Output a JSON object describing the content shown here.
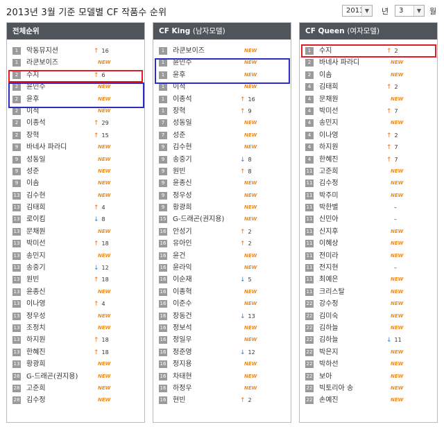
{
  "header": {
    "title": "2013년 3월 기준 모델별 CF 작품수 순위",
    "year_value": "2013",
    "year_label": "년",
    "month_value": "3",
    "month_label": "월"
  },
  "colors": {
    "panel_header": "#50555b",
    "new": "#f08a1c",
    "up": "#e8701a",
    "down": "#2a7fd1",
    "red_box": "#e01b24",
    "blue_box": "#2b2bc8"
  },
  "panels": [
    {
      "title": "전체순위",
      "subtitle": "",
      "rows": [
        {
          "rank": "1",
          "name": "악동뮤지션",
          "kind": "up",
          "value": "16"
        },
        {
          "rank": "1",
          "name": "라쿤보이즈",
          "kind": "new",
          "value": "NEW"
        },
        {
          "rank": "2",
          "name": "수지",
          "kind": "up",
          "value": "6"
        },
        {
          "rank": "2",
          "name": "윤민수",
          "kind": "new",
          "value": "NEW"
        },
        {
          "rank": "2",
          "name": "윤후",
          "kind": "new",
          "value": "NEW"
        },
        {
          "rank": "2",
          "name": "이적",
          "kind": "new",
          "value": "NEW"
        },
        {
          "rank": "2",
          "name": "이종석",
          "kind": "up",
          "value": "29"
        },
        {
          "rank": "2",
          "name": "장혁",
          "kind": "up",
          "value": "15"
        },
        {
          "rank": "9",
          "name": "바네사 파라디",
          "kind": "new",
          "value": "NEW"
        },
        {
          "rank": "9",
          "name": "성동일",
          "kind": "new",
          "value": "NEW"
        },
        {
          "rank": "9",
          "name": "성준",
          "kind": "new",
          "value": "NEW"
        },
        {
          "rank": "9",
          "name": "이솜",
          "kind": "new",
          "value": "NEW"
        },
        {
          "rank": "13",
          "name": "김수현",
          "kind": "new",
          "value": "NEW"
        },
        {
          "rank": "13",
          "name": "김태희",
          "kind": "up",
          "value": "4"
        },
        {
          "rank": "13",
          "name": "로이킴",
          "kind": "down",
          "value": "8"
        },
        {
          "rank": "13",
          "name": "문채원",
          "kind": "new",
          "value": "NEW"
        },
        {
          "rank": "13",
          "name": "박미선",
          "kind": "up",
          "value": "18"
        },
        {
          "rank": "13",
          "name": "송민지",
          "kind": "new",
          "value": "NEW"
        },
        {
          "rank": "13",
          "name": "송중기",
          "kind": "down",
          "value": "12"
        },
        {
          "rank": "13",
          "name": "원빈",
          "kind": "up",
          "value": "18"
        },
        {
          "rank": "13",
          "name": "윤종신",
          "kind": "new",
          "value": "NEW"
        },
        {
          "rank": "13",
          "name": "이나영",
          "kind": "up",
          "value": "4"
        },
        {
          "rank": "13",
          "name": "정우성",
          "kind": "new",
          "value": "NEW"
        },
        {
          "rank": "13",
          "name": "조정치",
          "kind": "new",
          "value": "NEW"
        },
        {
          "rank": "13",
          "name": "하지원",
          "kind": "up",
          "value": "18"
        },
        {
          "rank": "13",
          "name": "한혜진",
          "kind": "up",
          "value": "18"
        },
        {
          "rank": "13",
          "name": "황광희",
          "kind": "new",
          "value": "NEW"
        },
        {
          "rank": "28",
          "name": "G-드래곤(권지용)",
          "kind": "new",
          "value": "NEW"
        },
        {
          "rank": "28",
          "name": "고준희",
          "kind": "new",
          "value": "NEW"
        },
        {
          "rank": "28",
          "name": "김수정",
          "kind": "new",
          "value": "NEW"
        }
      ]
    },
    {
      "title": "CF King",
      "subtitle": "(남자모델)",
      "rows": [
        {
          "rank": "1",
          "name": "라쿤보이즈",
          "kind": "new",
          "value": "NEW"
        },
        {
          "rank": "1",
          "name": "윤민수",
          "kind": "new",
          "value": "NEW"
        },
        {
          "rank": "1",
          "name": "윤후",
          "kind": "new",
          "value": "NEW"
        },
        {
          "rank": "1",
          "name": "이적",
          "kind": "new",
          "value": "NEW"
        },
        {
          "rank": "1",
          "name": "이종석",
          "kind": "up",
          "value": "16"
        },
        {
          "rank": "1",
          "name": "장혁",
          "kind": "up",
          "value": "9"
        },
        {
          "rank": "7",
          "name": "성동일",
          "kind": "new",
          "value": "NEW"
        },
        {
          "rank": "7",
          "name": "성준",
          "kind": "new",
          "value": "NEW"
        },
        {
          "rank": "9",
          "name": "김수현",
          "kind": "new",
          "value": "NEW"
        },
        {
          "rank": "9",
          "name": "송중기",
          "kind": "down",
          "value": "8"
        },
        {
          "rank": "9",
          "name": "원빈",
          "kind": "up",
          "value": "8"
        },
        {
          "rank": "9",
          "name": "윤종신",
          "kind": "new",
          "value": "NEW"
        },
        {
          "rank": "9",
          "name": "정우성",
          "kind": "new",
          "value": "NEW"
        },
        {
          "rank": "9",
          "name": "황광희",
          "kind": "new",
          "value": "NEW"
        },
        {
          "rank": "15",
          "name": "G-드래곤(권지용)",
          "kind": "new",
          "value": "NEW"
        },
        {
          "rank": "16",
          "name": "안성기",
          "kind": "up",
          "value": "2"
        },
        {
          "rank": "16",
          "name": "유아인",
          "kind": "up",
          "value": "2"
        },
        {
          "rank": "16",
          "name": "윤건",
          "kind": "new",
          "value": "NEW"
        },
        {
          "rank": "16",
          "name": "윤라익",
          "kind": "new",
          "value": "NEW"
        },
        {
          "rank": "16",
          "name": "이순재",
          "kind": "down",
          "value": "5"
        },
        {
          "rank": "16",
          "name": "이종혁",
          "kind": "new",
          "value": "NEW"
        },
        {
          "rank": "16",
          "name": "이준수",
          "kind": "new",
          "value": "NEW"
        },
        {
          "rank": "16",
          "name": "장동건",
          "kind": "down",
          "value": "13"
        },
        {
          "rank": "16",
          "name": "정보석",
          "kind": "new",
          "value": "NEW"
        },
        {
          "rank": "16",
          "name": "정일우",
          "kind": "new",
          "value": "NEW"
        },
        {
          "rank": "16",
          "name": "정준영",
          "kind": "down",
          "value": "12"
        },
        {
          "rank": "16",
          "name": "정지용",
          "kind": "new",
          "value": "NEW"
        },
        {
          "rank": "16",
          "name": "차태현",
          "kind": "new",
          "value": "NEW"
        },
        {
          "rank": "16",
          "name": "하정우",
          "kind": "new",
          "value": "NEW"
        },
        {
          "rank": "16",
          "name": "현빈",
          "kind": "up",
          "value": "2"
        }
      ]
    },
    {
      "title": "CF Queen",
      "subtitle": "(여자모델)",
      "rows": [
        {
          "rank": "1",
          "name": "수지",
          "kind": "up",
          "value": "2"
        },
        {
          "rank": "2",
          "name": "바네사 파라디",
          "kind": "new",
          "value": "NEW"
        },
        {
          "rank": "2",
          "name": "이솜",
          "kind": "new",
          "value": "NEW"
        },
        {
          "rank": "4",
          "name": "김태희",
          "kind": "up",
          "value": "2"
        },
        {
          "rank": "4",
          "name": "문채원",
          "kind": "new",
          "value": "NEW"
        },
        {
          "rank": "4",
          "name": "박미선",
          "kind": "up",
          "value": "7"
        },
        {
          "rank": "4",
          "name": "송민지",
          "kind": "new",
          "value": "NEW"
        },
        {
          "rank": "4",
          "name": "이나영",
          "kind": "up",
          "value": "2"
        },
        {
          "rank": "4",
          "name": "하지원",
          "kind": "up",
          "value": "7"
        },
        {
          "rank": "4",
          "name": "한혜진",
          "kind": "up",
          "value": "7"
        },
        {
          "rank": "11",
          "name": "고준희",
          "kind": "new",
          "value": "NEW"
        },
        {
          "rank": "11",
          "name": "김수정",
          "kind": "new",
          "value": "NEW"
        },
        {
          "rank": "11",
          "name": "박주미",
          "kind": "new",
          "value": "NEW"
        },
        {
          "rank": "11",
          "name": "박한별",
          "kind": "same",
          "value": "–"
        },
        {
          "rank": "11",
          "name": "신민아",
          "kind": "same",
          "value": "–"
        },
        {
          "rank": "11",
          "name": "신지후",
          "kind": "new",
          "value": "NEW"
        },
        {
          "rank": "11",
          "name": "이혜상",
          "kind": "new",
          "value": "NEW"
        },
        {
          "rank": "11",
          "name": "전미라",
          "kind": "new",
          "value": "NEW"
        },
        {
          "rank": "11",
          "name": "전지현",
          "kind": "same",
          "value": "–"
        },
        {
          "rank": "11",
          "name": "최예은",
          "kind": "new",
          "value": "NEW"
        },
        {
          "rank": "11",
          "name": "크리스탈",
          "kind": "new",
          "value": "NEW"
        },
        {
          "rank": "22",
          "name": "강수정",
          "kind": "new",
          "value": "NEW"
        },
        {
          "rank": "22",
          "name": "김미숙",
          "kind": "new",
          "value": "NEW"
        },
        {
          "rank": "22",
          "name": "김하늘",
          "kind": "new",
          "value": "NEW"
        },
        {
          "rank": "22",
          "name": "김하늘",
          "kind": "down",
          "value": "11"
        },
        {
          "rank": "22",
          "name": "박은지",
          "kind": "new",
          "value": "NEW"
        },
        {
          "rank": "22",
          "name": "박하선",
          "kind": "new",
          "value": "NEW"
        },
        {
          "rank": "22",
          "name": "보아",
          "kind": "new",
          "value": "NEW"
        },
        {
          "rank": "22",
          "name": "빅토리아 송",
          "kind": "new",
          "value": "NEW"
        },
        {
          "rank": "22",
          "name": "손예진",
          "kind": "new",
          "value": "NEW"
        }
      ]
    }
  ]
}
